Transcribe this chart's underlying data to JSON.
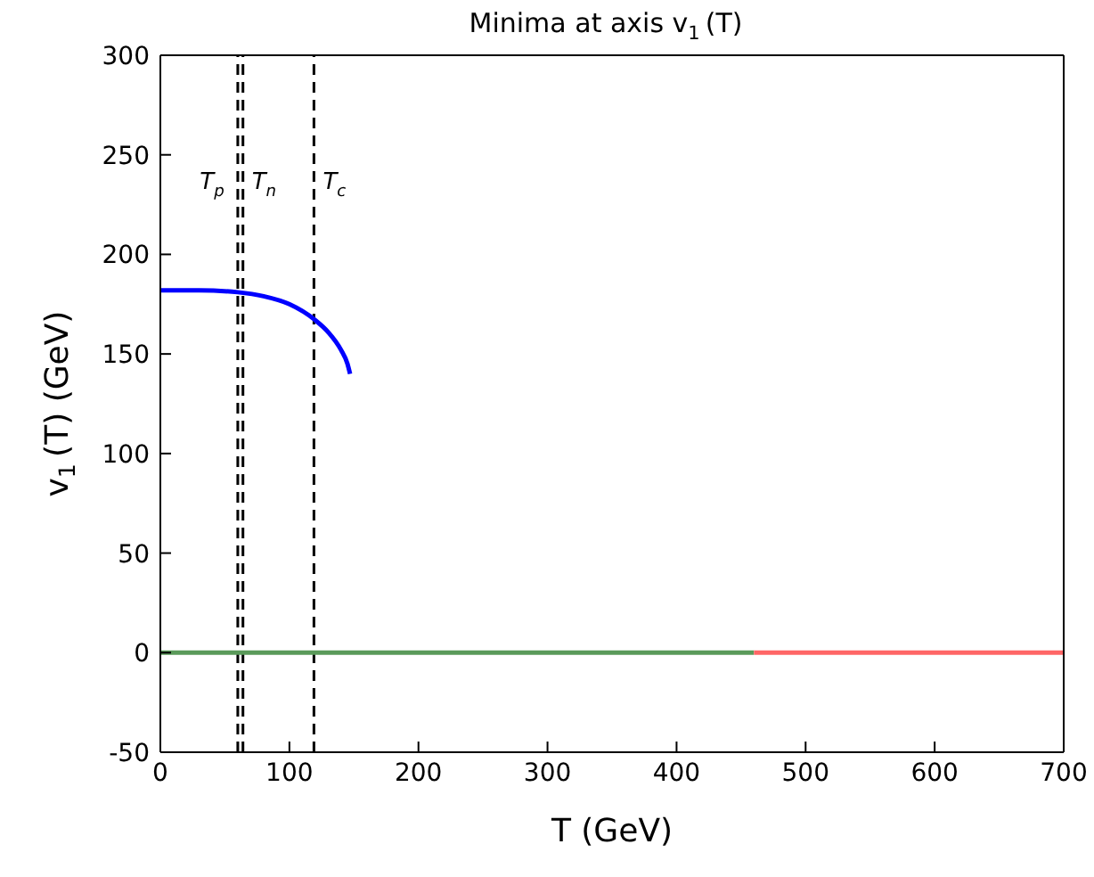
{
  "chart_data": {
    "type": "line",
    "title": "Minima at axis v$_{1}$(T)",
    "xlabel": "T (GeV)",
    "ylabel": "v$_{1}$(T) (GeV)",
    "xlim": [
      0,
      700
    ],
    "xticks": [
      0,
      100,
      200,
      300,
      400,
      500,
      600,
      700
    ],
    "ylim": [
      -50,
      300
    ],
    "yticks": [
      -50,
      0,
      50,
      100,
      150,
      200,
      250,
      300
    ],
    "legend": false,
    "series": [
      {
        "color": "#0000ff",
        "x": [
          0,
          30,
          60,
          80,
          100,
          120,
          130,
          140,
          145,
          147
        ],
        "values": [
          182,
          182,
          181,
          179,
          175,
          167,
          161,
          152,
          145,
          140
        ]
      },
      {
        "color": "#5a9a5a",
        "x": [
          0,
          460
        ],
        "values": [
          0,
          0
        ]
      },
      {
        "color": "#ff6666",
        "x": [
          460,
          700
        ],
        "values": [
          0,
          0
        ]
      }
    ],
    "ref_lines": [
      {
        "axis": "x",
        "value": 60,
        "label": "T$_{p}$",
        "line_style": "dashed",
        "color": "#000000"
      },
      {
        "axis": "x",
        "value": 64,
        "label": "T$_{n}$",
        "line_style": "dashed",
        "color": "#000000"
      },
      {
        "axis": "x",
        "value": 119,
        "label": "T$_{c}$",
        "line_style": "dashed",
        "color": "#000000"
      }
    ]
  }
}
